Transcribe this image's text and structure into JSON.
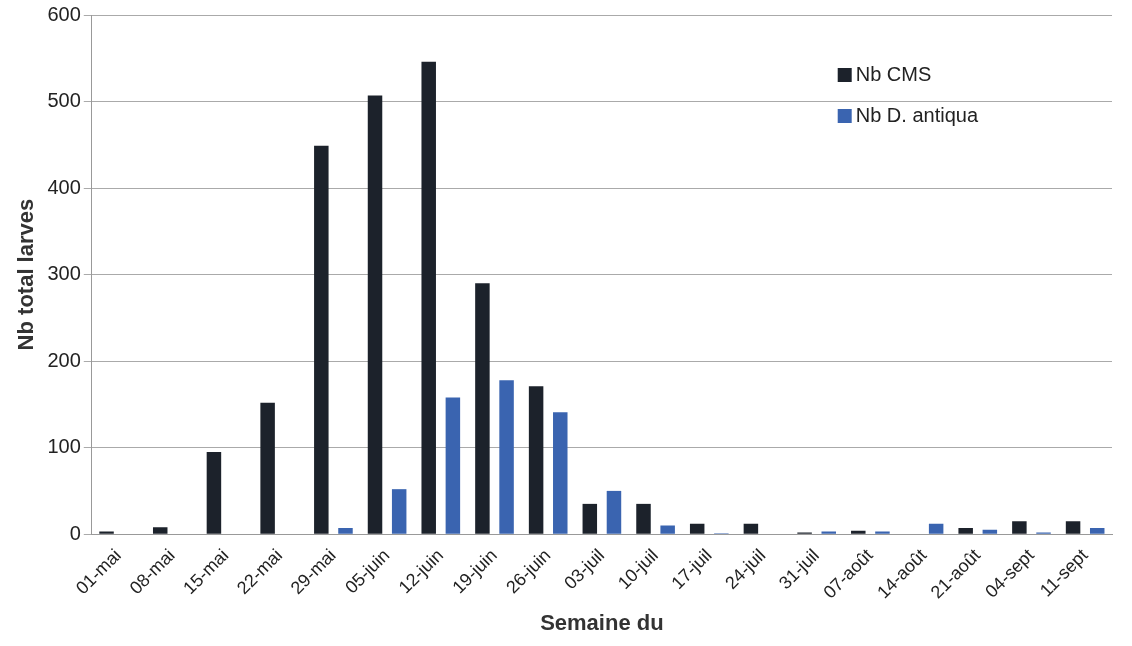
{
  "chart_data": {
    "type": "bar",
    "xlabel": "Semaine du",
    "ylabel": "Nb total larves",
    "categories": [
      "01-mai",
      "08-mai",
      "15-mai",
      "22-mai",
      "29-mai",
      "05-juin",
      "12-juin",
      "19-juin",
      "26-juin",
      "03-juil",
      "10-juil",
      "17-juil",
      "24-juil",
      "31-juil",
      "07-août",
      "14-août",
      "21-août",
      "04-sept",
      "11-sept"
    ],
    "series": [
      {
        "name": "Nb CMS",
        "color": "#1c222b",
        "values": [
          3,
          8,
          95,
          152,
          449,
          507,
          546,
          290,
          171,
          35,
          35,
          12,
          12,
          2,
          4,
          0,
          7,
          15,
          15
        ]
      },
      {
        "name": "Nb D. antiqua",
        "color": "#3a64b0",
        "values": [
          0,
          0,
          0,
          0,
          7,
          52,
          158,
          178,
          141,
          50,
          10,
          1,
          0,
          3,
          3,
          12,
          5,
          2,
          7
        ]
      }
    ],
    "ylim": [
      0,
      600
    ],
    "yticks": [
      0,
      100,
      200,
      300,
      400,
      500,
      600
    ],
    "grid": "y",
    "legend": "top right"
  }
}
